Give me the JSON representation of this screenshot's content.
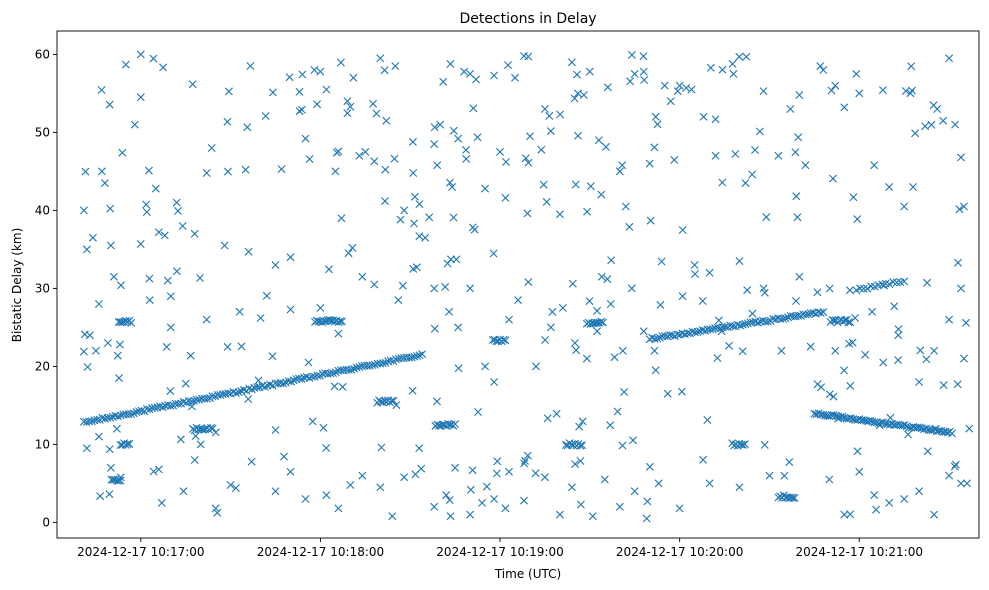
{
  "chart_data": {
    "type": "scatter",
    "title": "Detections in Delay",
    "xlabel": "Time (UTC)",
    "ylabel": "Bistatic Delay (km)",
    "xlim": [
      "2024-12-17 10:16:32",
      "2024-12-17 10:21:40"
    ],
    "ylim": [
      -2,
      63
    ],
    "xticks": [
      "2024-12-17 10:17:00",
      "2024-12-17 10:18:00",
      "2024-12-17 10:19:00",
      "2024-12-17 10:20:00",
      "2024-12-17 10:21:00"
    ],
    "yticks": [
      0,
      10,
      20,
      30,
      40,
      50,
      60
    ],
    "marker": "x",
    "color": "#1f77b4",
    "grid": false,
    "tracks": [
      {
        "t_start": "2024-12-17 10:16:41",
        "t_end": "2024-12-17 10:18:34",
        "y_start": 12.8,
        "y_end": 21.5,
        "points": 130
      },
      {
        "t_start": "2024-12-17 10:19:50",
        "t_end": "2024-12-17 10:20:48",
        "y_start": 23.5,
        "y_end": 27.0,
        "points": 70
      },
      {
        "t_start": "2024-12-17 10:20:45",
        "t_end": "2024-12-17 10:21:31",
        "y_start": 14.0,
        "y_end": 11.5,
        "points": 65
      },
      {
        "t_start": "2024-12-17 10:20:59",
        "t_end": "2024-12-17 10:21:15",
        "y_start": 29.8,
        "y_end": 31.0,
        "points": 14
      }
    ],
    "clusters": [
      {
        "t": "2024-12-17 10:16:55",
        "y": 25.7,
        "count": 8
      },
      {
        "t": "2024-12-17 10:17:21",
        "y": 12.0,
        "count": 12
      },
      {
        "t": "2024-12-17 10:18:03",
        "y": 25.8,
        "count": 16
      },
      {
        "t": "2024-12-17 10:18:22",
        "y": 15.5,
        "count": 10
      },
      {
        "t": "2024-12-17 10:18:42",
        "y": 12.5,
        "count": 12
      },
      {
        "t": "2024-12-17 10:19:00",
        "y": 23.3,
        "count": 8
      },
      {
        "t": "2024-12-17 10:19:25",
        "y": 10.0,
        "count": 10
      },
      {
        "t": "2024-12-17 10:19:32",
        "y": 25.6,
        "count": 10
      },
      {
        "t": "2024-12-17 10:20:20",
        "y": 10.0,
        "count": 8
      },
      {
        "t": "2024-12-17 10:20:36",
        "y": 3.3,
        "count": 10
      },
      {
        "t": "2024-12-17 10:20:54",
        "y": 25.8,
        "count": 12
      },
      {
        "t": "2024-12-17 10:16:55",
        "y": 10.0,
        "count": 6
      },
      {
        "t": "2024-12-17 10:16:52",
        "y": 5.5,
        "count": 6
      }
    ],
    "scattered_points": [
      [
        "2024-12-17 10:16:41",
        40.0
      ],
      [
        "2024-12-17 10:16:44",
        36.5
      ],
      [
        "2024-12-17 10:16:42",
        35.0
      ],
      [
        "2024-12-17 10:16:45",
        22.0
      ],
      [
        "2024-12-17 10:16:47",
        45.0
      ],
      [
        "2024-12-17 10:16:48",
        43.5
      ],
      [
        "2024-12-17 10:16:50",
        35.5
      ],
      [
        "2024-12-17 10:16:51",
        31.5
      ],
      [
        "2024-12-17 10:16:58",
        51.0
      ],
      [
        "2024-12-17 10:17:00",
        54.5
      ],
      [
        "2024-12-17 10:17:00",
        60.0
      ],
      [
        "2024-12-17 10:17:02",
        39.8
      ],
      [
        "2024-12-17 10:17:05",
        42.8
      ],
      [
        "2024-12-17 10:17:06",
        37.2
      ],
      [
        "2024-12-17 10:17:08",
        36.8
      ],
      [
        "2024-12-17 10:17:09",
        31.0
      ],
      [
        "2024-12-17 10:17:10",
        29.0
      ],
      [
        "2024-12-17 10:17:12",
        41.0
      ],
      [
        "2024-12-17 10:17:14",
        38.0
      ],
      [
        "2024-12-17 10:17:18",
        37.0
      ],
      [
        "2024-12-17 10:17:22",
        44.8
      ],
      [
        "2024-12-17 10:17:28",
        35.5
      ],
      [
        "2024-12-17 10:17:35",
        45.2
      ],
      [
        "2024-12-17 10:17:36",
        34.7
      ],
      [
        "2024-12-17 10:17:45",
        33.0
      ],
      [
        "2024-12-17 10:17:47",
        45.3
      ],
      [
        "2024-12-17 10:17:50",
        34.0
      ],
      [
        "2024-12-17 10:17:53",
        55.2
      ],
      [
        "2024-12-17 10:17:55",
        49.2
      ],
      [
        "2024-12-17 10:17:58",
        58.0
      ],
      [
        "2024-12-17 10:18:00",
        57.8
      ],
      [
        "2024-12-17 10:18:02",
        55.5
      ],
      [
        "2024-12-17 10:18:05",
        45.0
      ],
      [
        "2024-12-17 10:18:07",
        39.0
      ],
      [
        "2024-12-17 10:18:09",
        54.0
      ],
      [
        "2024-12-17 10:18:10",
        53.3
      ],
      [
        "2024-12-17 10:18:11",
        57.0
      ],
      [
        "2024-12-17 10:18:13",
        47.0
      ],
      [
        "2024-12-17 10:18:15",
        47.5
      ],
      [
        "2024-12-17 10:18:18",
        46.3
      ],
      [
        "2024-12-17 10:18:20",
        59.5
      ],
      [
        "2024-12-17 10:18:22",
        51.5
      ],
      [
        "2024-12-17 10:18:25",
        58.5
      ],
      [
        "2024-12-17 10:18:28",
        40.0
      ],
      [
        "2024-12-17 10:18:31",
        44.8
      ],
      [
        "2024-12-17 10:18:35",
        36.5
      ],
      [
        "2024-12-17 10:18:38",
        48.5
      ],
      [
        "2024-12-17 10:18:39",
        45.8
      ],
      [
        "2024-12-17 10:18:40",
        51.0
      ],
      [
        "2024-12-17 10:18:41",
        56.5
      ],
      [
        "2024-12-17 10:18:44",
        43.0
      ],
      [
        "2024-12-17 10:18:46",
        49.2
      ],
      [
        "2024-12-17 10:18:48",
        57.8
      ],
      [
        "2024-12-17 10:18:50",
        57.5
      ],
      [
        "2024-12-17 10:18:52",
        56.8
      ],
      [
        "2024-12-17 10:18:55",
        42.8
      ],
      [
        "2024-12-17 10:18:58",
        57.3
      ],
      [
        "2024-12-17 10:19:00",
        47.5
      ],
      [
        "2024-12-17 10:19:02",
        46.2
      ],
      [
        "2024-12-17 10:19:05",
        57.0
      ],
      [
        "2024-12-17 10:19:08",
        59.8
      ],
      [
        "2024-12-17 10:19:10",
        49.5
      ],
      [
        "2024-12-17 10:19:15",
        53.0
      ],
      [
        "2024-12-17 10:19:20",
        39.5
      ],
      [
        "2024-12-17 10:19:24",
        59.0
      ],
      [
        "2024-12-17 10:19:26",
        55.0
      ],
      [
        "2024-12-17 10:19:28",
        54.8
      ],
      [
        "2024-12-17 10:19:30",
        57.8
      ],
      [
        "2024-12-17 10:19:33",
        49.0
      ],
      [
        "2024-12-17 10:19:36",
        55.8
      ],
      [
        "2024-12-17 10:19:40",
        45.0
      ],
      [
        "2024-12-17 10:19:42",
        40.5
      ],
      [
        "2024-12-17 10:19:45",
        57.5
      ],
      [
        "2024-12-17 10:19:48",
        57.8
      ],
      [
        "2024-12-17 10:19:50",
        46.0
      ],
      [
        "2024-12-17 10:19:52",
        52.0
      ],
      [
        "2024-12-17 10:19:55",
        56.0
      ],
      [
        "2024-12-17 10:19:57",
        54.0
      ],
      [
        "2024-12-17 10:20:00",
        56.0
      ],
      [
        "2024-12-17 10:20:04",
        55.5
      ],
      [
        "2024-12-17 10:20:08",
        52.0
      ],
      [
        "2024-12-17 10:20:12",
        47.0
      ],
      [
        "2024-12-17 10:20:18",
        57.5
      ],
      [
        "2024-12-17 10:20:22",
        43.5
      ],
      [
        "2024-12-17 10:20:28",
        55.3
      ],
      [
        "2024-12-17 10:20:33",
        47.0
      ],
      [
        "2024-12-17 10:20:37",
        53.0
      ],
      [
        "2024-12-17 10:20:40",
        54.8
      ],
      [
        "2024-12-17 10:20:42",
        45.8
      ],
      [
        "2024-12-17 10:20:47",
        58.5
      ],
      [
        "2024-12-17 10:20:48",
        58.0
      ],
      [
        "2024-12-17 10:20:52",
        56.0
      ],
      [
        "2024-12-17 10:20:55",
        53.2
      ],
      [
        "2024-12-17 10:20:59",
        57.5
      ],
      [
        "2024-12-17 10:21:00",
        55.0
      ],
      [
        "2024-12-17 10:21:05",
        45.8
      ],
      [
        "2024-12-17 10:21:10",
        43.0
      ],
      [
        "2024-12-17 10:21:15",
        40.5
      ],
      [
        "2024-12-17 10:21:18",
        43.0
      ],
      [
        "2024-12-17 10:21:22",
        50.8
      ],
      [
        "2024-12-17 10:21:26",
        53.0
      ],
      [
        "2024-12-17 10:21:28",
        51.5
      ],
      [
        "2024-12-17 10:21:30",
        59.5
      ],
      [
        "2024-12-17 10:21:32",
        51.0
      ],
      [
        "2024-12-17 10:21:34",
        46.8
      ],
      [
        "2024-12-17 10:21:35",
        40.5
      ],
      [
        "2024-12-17 10:21:33",
        33.3
      ],
      [
        "2024-12-17 10:16:42",
        9.5
      ],
      [
        "2024-12-17 10:16:46",
        11.0
      ],
      [
        "2024-12-17 10:16:50",
        7.0
      ],
      [
        "2024-12-17 10:16:52",
        12.0
      ],
      [
        "2024-12-17 10:17:06",
        6.8
      ],
      [
        "2024-12-17 10:17:07",
        2.5
      ],
      [
        "2024-12-17 10:17:18",
        8.0
      ],
      [
        "2024-12-17 10:17:20",
        10.0
      ],
      [
        "2024-12-17 10:17:25",
        1.8
      ],
      [
        "2024-12-17 10:17:30",
        4.8
      ],
      [
        "2024-12-17 10:17:37",
        7.8
      ],
      [
        "2024-12-17 10:17:45",
        4.0
      ],
      [
        "2024-12-17 10:17:50",
        6.5
      ],
      [
        "2024-12-17 10:17:55",
        3.0
      ],
      [
        "2024-12-17 10:18:02",
        3.5
      ],
      [
        "2024-12-17 10:18:06",
        1.8
      ],
      [
        "2024-12-17 10:18:10",
        4.8
      ],
      [
        "2024-12-17 10:18:14",
        6.0
      ],
      [
        "2024-12-17 10:18:20",
        4.5
      ],
      [
        "2024-12-17 10:18:24",
        0.8
      ],
      [
        "2024-12-17 10:18:28",
        5.8
      ],
      [
        "2024-12-17 10:18:33",
        9.5
      ],
      [
        "2024-12-17 10:18:38",
        2.0
      ],
      [
        "2024-12-17 10:18:42",
        3.5
      ],
      [
        "2024-12-17 10:18:45",
        7.0
      ],
      [
        "2024-12-17 10:18:50",
        1.0
      ],
      [
        "2024-12-17 10:18:54",
        2.5
      ],
      [
        "2024-12-17 10:18:58",
        3.0
      ],
      [
        "2024-12-17 10:19:03",
        6.5
      ],
      [
        "2024-12-17 10:19:08",
        2.8
      ],
      [
        "2024-12-17 10:19:15",
        5.8
      ],
      [
        "2024-12-17 10:19:20",
        1.0
      ],
      [
        "2024-12-17 10:19:24",
        4.5
      ],
      [
        "2024-12-17 10:19:27",
        2.3
      ],
      [
        "2024-12-17 10:19:31",
        0.8
      ],
      [
        "2024-12-17 10:19:35",
        5.5
      ],
      [
        "2024-12-17 10:19:40",
        2.0
      ],
      [
        "2024-12-17 10:19:45",
        4.0
      ],
      [
        "2024-12-17 10:19:49",
        0.5
      ],
      [
        "2024-12-17 10:19:53",
        5.0
      ],
      [
        "2024-12-17 10:20:00",
        1.8
      ],
      [
        "2024-12-17 10:20:10",
        5.0
      ],
      [
        "2024-12-17 10:20:20",
        4.5
      ],
      [
        "2024-12-17 10:20:30",
        6.0
      ],
      [
        "2024-12-17 10:20:50",
        5.5
      ],
      [
        "2024-12-17 10:20:55",
        1.0
      ],
      [
        "2024-12-17 10:21:00",
        6.5
      ],
      [
        "2024-12-17 10:21:05",
        3.5
      ],
      [
        "2024-12-17 10:21:10",
        2.5
      ],
      [
        "2024-12-17 10:21:15",
        3.0
      ],
      [
        "2024-12-17 10:21:20",
        4.0
      ],
      [
        "2024-12-17 10:21:25",
        1.0
      ],
      [
        "2024-12-17 10:21:30",
        6.0
      ],
      [
        "2024-12-17 10:21:34",
        5.0
      ],
      [
        "2024-12-17 10:21:36",
        5.0
      ],
      [
        "2024-12-17 10:16:43",
        24.0
      ],
      [
        "2024-12-17 10:16:46",
        28.0
      ],
      [
        "2024-12-17 10:16:49",
        23.0
      ],
      [
        "2024-12-17 10:16:53",
        22.8
      ],
      [
        "2024-12-17 10:17:03",
        28.5
      ],
      [
        "2024-12-17 10:17:10",
        25.0
      ],
      [
        "2024-12-17 10:17:15",
        17.8
      ],
      [
        "2024-12-17 10:17:22",
        26.0
      ],
      [
        "2024-12-17 10:17:29",
        22.5
      ],
      [
        "2024-12-17 10:17:33",
        27.0
      ],
      [
        "2024-12-17 10:17:40",
        26.2
      ],
      [
        "2024-12-17 10:17:44",
        21.3
      ],
      [
        "2024-12-17 10:17:50",
        27.3
      ],
      [
        "2024-12-17 10:17:56",
        20.5
      ],
      [
        "2024-12-17 10:18:00",
        27.5
      ],
      [
        "2024-12-17 10:18:06",
        24.2
      ],
      [
        "2024-12-17 10:18:14",
        31.5
      ],
      [
        "2024-12-17 10:18:18",
        30.5
      ],
      [
        "2024-12-17 10:18:26",
        28.5
      ],
      [
        "2024-12-17 10:18:31",
        32.5
      ],
      [
        "2024-12-17 10:18:38",
        30.0
      ],
      [
        "2024-12-17 10:18:43",
        27.0
      ],
      [
        "2024-12-17 10:18:46",
        25.0
      ],
      [
        "2024-12-17 10:18:50",
        30.0
      ],
      [
        "2024-12-17 10:18:55",
        20.0
      ],
      [
        "2024-12-17 10:18:58",
        18.0
      ],
      [
        "2024-12-17 10:19:03",
        26.0
      ],
      [
        "2024-12-17 10:19:06",
        28.5
      ],
      [
        "2024-12-17 10:19:12",
        20.0
      ],
      [
        "2024-12-17 10:19:17",
        25.0
      ],
      [
        "2024-12-17 10:19:21",
        27.5
      ],
      [
        "2024-12-17 10:19:25",
        23.0
      ],
      [
        "2024-12-17 10:19:29",
        21.0
      ],
      [
        "2024-12-17 10:19:34",
        31.5
      ],
      [
        "2024-12-17 10:19:37",
        28.0
      ],
      [
        "2024-12-17 10:19:41",
        22.0
      ],
      [
        "2024-12-17 10:19:44",
        30.0
      ],
      [
        "2024-12-17 10:19:48",
        24.5
      ],
      [
        "2024-12-17 10:19:52",
        19.5
      ],
      [
        "2024-12-17 10:19:56",
        16.5
      ],
      [
        "2024-12-17 10:20:01",
        29.0
      ],
      [
        "2024-12-17 10:20:05",
        33.0
      ],
      [
        "2024-12-17 10:20:10",
        32.0
      ],
      [
        "2024-12-17 10:20:14",
        24.5
      ],
      [
        "2024-12-17 10:20:20",
        33.5
      ],
      [
        "2024-12-17 10:20:28",
        30.0
      ],
      [
        "2024-12-17 10:20:34",
        22.0
      ],
      [
        "2024-12-17 10:20:40",
        31.5
      ],
      [
        "2024-12-17 10:20:46",
        29.5
      ],
      [
        "2024-12-17 10:20:52",
        22.0
      ],
      [
        "2024-12-17 10:20:57",
        17.5
      ],
      [
        "2024-12-17 10:21:02",
        21.5
      ],
      [
        "2024-12-17 10:21:08",
        20.5
      ],
      [
        "2024-12-17 10:21:13",
        24.0
      ],
      [
        "2024-12-17 10:21:20",
        18.0
      ],
      [
        "2024-12-17 10:21:25",
        22.0
      ],
      [
        "2024-12-17 10:21:30",
        26.0
      ],
      [
        "2024-12-17 10:21:35",
        21.0
      ],
      [
        "2024-12-17 10:21:34",
        30.0
      ]
    ],
    "background_noise": {
      "count": 260,
      "t_range": [
        "2024-12-17 10:16:40",
        "2024-12-17 10:21:37"
      ],
      "y_range": [
        0.5,
        60
      ]
    }
  }
}
